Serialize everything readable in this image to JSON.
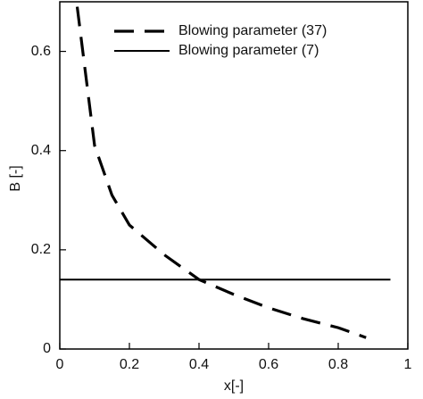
{
  "chart_data": {
    "type": "line",
    "xlabel": "x[-]",
    "ylabel": "B [-]",
    "xlim": [
      0,
      1
    ],
    "ylim": [
      0,
      0.7
    ],
    "xticks": [
      0,
      0.2,
      0.4,
      0.6,
      0.8,
      1
    ],
    "yticks": [
      0,
      0.2,
      0.4,
      0.6
    ],
    "legend": "upper right",
    "series": [
      {
        "name": "Blowing parameter (37)",
        "color": "#000000",
        "dash": true,
        "x": [
          0.05,
          0.1,
          0.15,
          0.2,
          0.3,
          0.4,
          0.5,
          0.6,
          0.7,
          0.8,
          0.88
        ],
        "values": [
          0.69,
          0.41,
          0.31,
          0.25,
          0.19,
          0.14,
          0.11,
          0.083,
          0.061,
          0.043,
          0.023
        ]
      },
      {
        "name": "Blowing parameter (7)",
        "color": "#000000",
        "dash": false,
        "x": [
          0,
          0.95
        ],
        "values": [
          0.14,
          0.14
        ]
      }
    ]
  }
}
